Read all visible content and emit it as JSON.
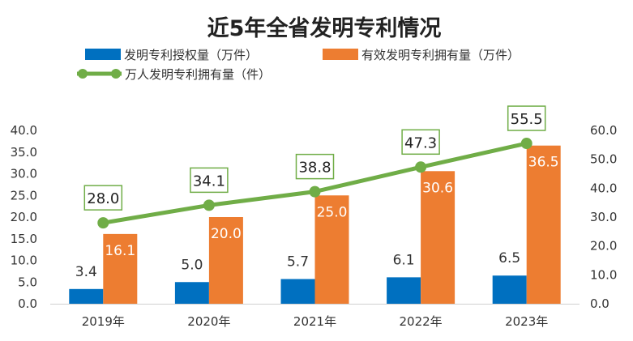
{
  "chart_data": {
    "type": "bar",
    "title": "近5年全省发明专利情况",
    "categories": [
      "2019年",
      "2020年",
      "2021年",
      "2022年",
      "2023年"
    ],
    "series": [
      {
        "name": "发明专利授权量（万件）",
        "kind": "bar",
        "axis": "left",
        "color": "#0070C0",
        "values": [
          3.4,
          5.0,
          5.7,
          6.1,
          6.5
        ],
        "labels": [
          "3.4",
          "5.0",
          "5.7",
          "6.1",
          "6.5"
        ]
      },
      {
        "name": "有效发明专利拥有量（万件）",
        "kind": "bar",
        "axis": "left",
        "color": "#ED7D31",
        "values": [
          16.1,
          20.0,
          25.0,
          30.6,
          36.5
        ],
        "labels": [
          "16.1",
          "20.0",
          "25.0",
          "30.6",
          "36.5"
        ]
      },
      {
        "name": "万人发明专利拥有量（件）",
        "kind": "line",
        "axis": "right",
        "color": "#70AD47",
        "values": [
          28.0,
          34.1,
          38.8,
          47.3,
          55.5
        ],
        "labels": [
          "28.0",
          "34.1",
          "38.8",
          "47.3",
          "55.5"
        ]
      }
    ],
    "y_left": {
      "min": 0,
      "max": 40,
      "ticks": [
        "0.0",
        "5.0",
        "10.0",
        "15.0",
        "20.0",
        "25.0",
        "30.0",
        "35.0",
        "40.0"
      ]
    },
    "y_right": {
      "min": 0,
      "max": 60,
      "ticks": [
        "0.0",
        "10.0",
        "20.0",
        "30.0",
        "40.0",
        "50.0",
        "60.0"
      ]
    },
    "legend_position": "top-left",
    "grid": false
  }
}
